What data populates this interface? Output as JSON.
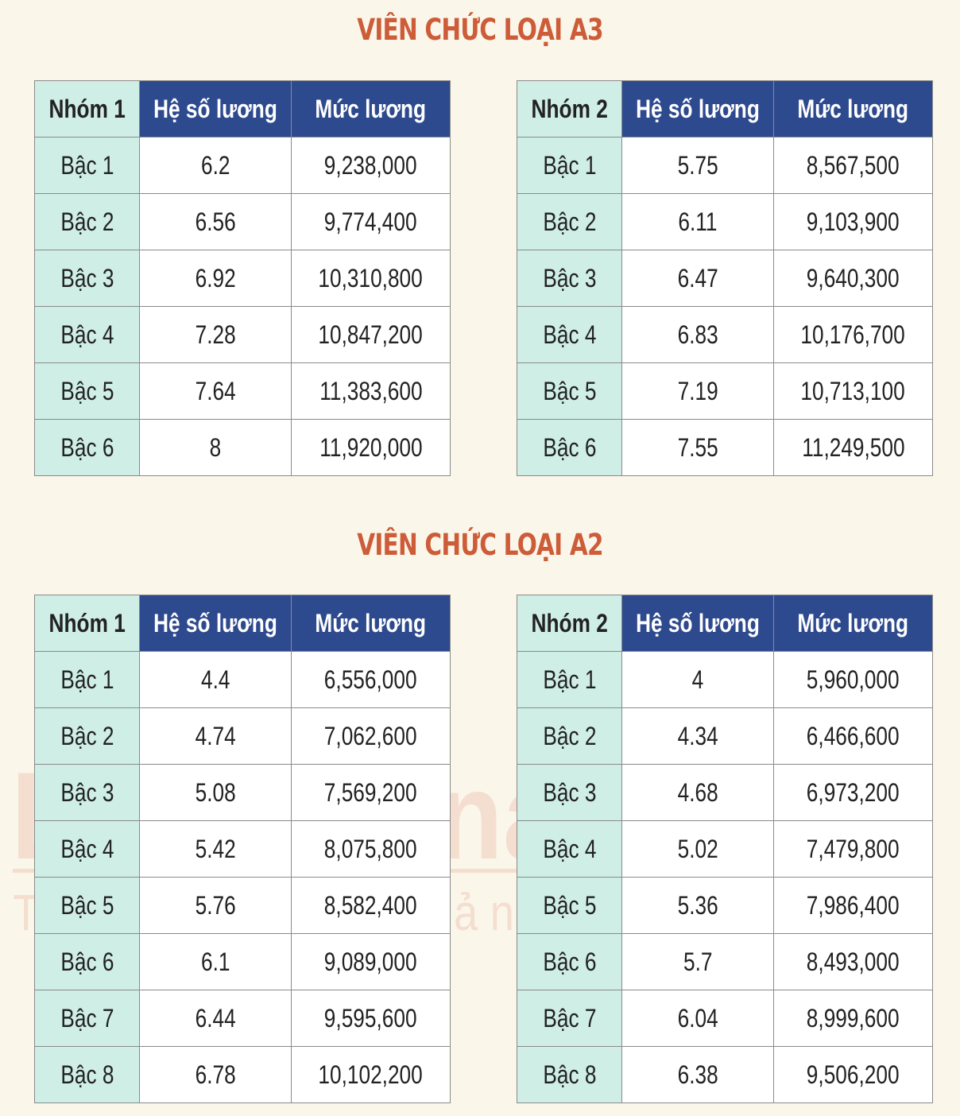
{
  "colors": {
    "background": "#fbf6ea",
    "title": "#cd5c38",
    "header_blue": "#2e4a8e",
    "label_teal": "#cfeee6",
    "cell_white": "#ffffff",
    "watermark": "#e8b7a8"
  },
  "watermark": {
    "brand": "LuatVietnam",
    "tagline": "Tiện ích văn bản luật"
  },
  "sections": [
    {
      "title": "VIÊN CHỨC LOẠI A3",
      "tables": [
        {
          "headers": [
            "Nhóm 1",
            "Hệ số lương",
            "Mức lương"
          ],
          "rows": [
            [
              "Bậc 1",
              "6.2",
              "9,238,000"
            ],
            [
              "Bậc 2",
              "6.56",
              "9,774,400"
            ],
            [
              "Bậc 3",
              "6.92",
              "10,310,800"
            ],
            [
              "Bậc 4",
              "7.28",
              "10,847,200"
            ],
            [
              "Bậc 5",
              "7.64",
              "11,383,600"
            ],
            [
              "Bậc 6",
              "8",
              "11,920,000"
            ]
          ]
        },
        {
          "headers": [
            "Nhóm 2",
            "Hệ số lương",
            "Mức lương"
          ],
          "rows": [
            [
              "Bậc 1",
              "5.75",
              "8,567,500"
            ],
            [
              "Bậc 2",
              "6.11",
              "9,103,900"
            ],
            [
              "Bậc 3",
              "6.47",
              "9,640,300"
            ],
            [
              "Bậc 4",
              "6.83",
              "10,176,700"
            ],
            [
              "Bậc 5",
              "7.19",
              "10,713,100"
            ],
            [
              "Bậc 6",
              "7.55",
              "11,249,500"
            ]
          ]
        }
      ]
    },
    {
      "title": "VIÊN CHỨC LOẠI A2",
      "tables": [
        {
          "headers": [
            "Nhóm 1",
            "Hệ số lương",
            "Mức lương"
          ],
          "rows": [
            [
              "Bậc 1",
              "4.4",
              "6,556,000"
            ],
            [
              "Bậc 2",
              "4.74",
              "7,062,600"
            ],
            [
              "Bậc 3",
              "5.08",
              "7,569,200"
            ],
            [
              "Bậc 4",
              "5.42",
              "8,075,800"
            ],
            [
              "Bậc 5",
              "5.76",
              "8,582,400"
            ],
            [
              "Bậc 6",
              "6.1",
              "9,089,000"
            ],
            [
              "Bậc 7",
              "6.44",
              "9,595,600"
            ],
            [
              "Bậc 8",
              "6.78",
              "10,102,200"
            ]
          ]
        },
        {
          "headers": [
            "Nhóm 2",
            "Hệ số lương",
            "Mức lương"
          ],
          "rows": [
            [
              "Bậc 1",
              "4",
              "5,960,000"
            ],
            [
              "Bậc 2",
              "4.34",
              "6,466,600"
            ],
            [
              "Bậc 3",
              "4.68",
              "6,973,200"
            ],
            [
              "Bậc 4",
              "5.02",
              "7,479,800"
            ],
            [
              "Bậc 5",
              "5.36",
              "7,986,400"
            ],
            [
              "Bậc 6",
              "5.7",
              "8,493,000"
            ],
            [
              "Bậc 7",
              "6.04",
              "8,999,600"
            ],
            [
              "Bậc 8",
              "6.38",
              "9,506,200"
            ]
          ]
        }
      ]
    }
  ]
}
